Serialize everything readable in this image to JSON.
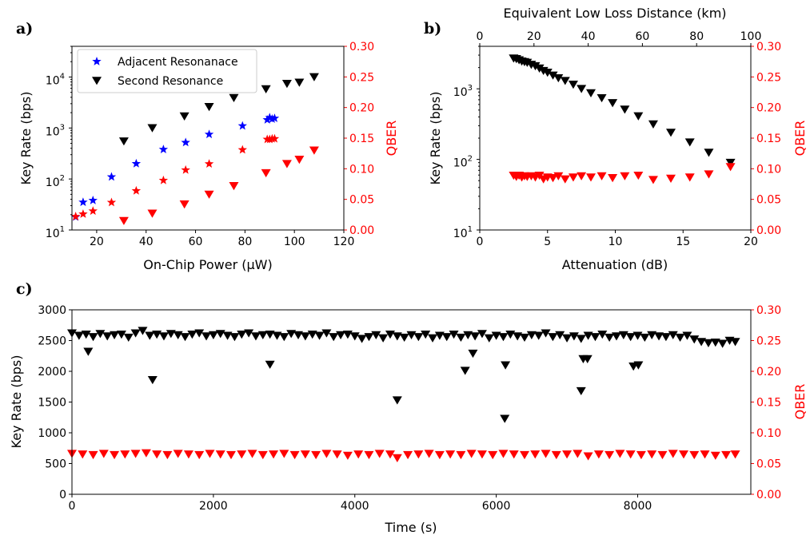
{
  "colors": {
    "key": "#000000",
    "qber": "#ff0000",
    "adj_key": "#0000ff",
    "adj_qber": "#ff0000"
  },
  "chart_data": [
    {
      "type": "scatter",
      "panel_label": "a)",
      "xlabel": "On-Chip Power (µW)",
      "ylabel": "Key Rate (bps)",
      "y2label": "QBER",
      "xlim": [
        10,
        120
      ],
      "ylim": [
        10,
        40000
      ],
      "yscale": "log",
      "y2lim": [
        0,
        0.3
      ],
      "xticks": [
        "20",
        "40",
        "60",
        "80",
        "100",
        "120"
      ],
      "yticks": [
        "10",
        "10",
        "10",
        "10"
      ],
      "ytick_exponents": [
        "1",
        "2",
        "3",
        "4"
      ],
      "y2ticks": [
        "0.00",
        "0.05",
        "0.10",
        "0.15",
        "0.20",
        "0.25",
        "0.30"
      ],
      "legend_position": "top-left",
      "series": [
        {
          "name": "Adjacent Resonanace",
          "axis": "left",
          "marker": "star",
          "color": "#0000ff",
          "x": [
            11.5,
            14.5,
            18.5,
            26,
            36,
            47,
            56,
            65.5,
            79,
            89,
            90,
            91,
            92
          ],
          "y": [
            18,
            35,
            38,
            110,
            200,
            380,
            520,
            750,
            1100,
            1450,
            1600,
            1500,
            1550
          ]
        },
        {
          "name": "Second Resonance",
          "axis": "left",
          "marker": "triangle-down",
          "color": "#000000",
          "x": [
            31,
            42.5,
            55.5,
            65.5,
            75.5,
            88.5,
            97,
            102,
            108
          ],
          "y": [
            550,
            1000,
            1700,
            2600,
            3900,
            5800,
            7400,
            7800,
            10000
          ]
        },
        {
          "axis": "right",
          "marker": "star",
          "color": "#ff0000",
          "x": [
            11.5,
            14.5,
            18.5,
            26,
            36,
            47,
            56,
            65.5,
            79,
            89,
            90,
            91,
            92
          ],
          "y": [
            0.022,
            0.026,
            0.031,
            0.045,
            0.064,
            0.081,
            0.098,
            0.108,
            0.131,
            0.148,
            0.148,
            0.149,
            0.149
          ]
        },
        {
          "axis": "right",
          "marker": "triangle-down",
          "color": "#ff0000",
          "x": [
            31,
            42.5,
            55.5,
            65.5,
            75.5,
            88.5,
            97,
            102,
            108
          ],
          "y": [
            0.015,
            0.027,
            0.042,
            0.058,
            0.072,
            0.093,
            0.108,
            0.115,
            0.13
          ]
        }
      ]
    },
    {
      "type": "scatter",
      "panel_label": "b)",
      "xlabel": "Attenuation (dB)",
      "x2label": "Equivalent Low Loss Distance (km)",
      "ylabel": "Key Rate (bps)",
      "y2label": "QBER",
      "xlim": [
        0,
        20
      ],
      "x2lim": [
        0,
        100
      ],
      "ylim": [
        10,
        4000
      ],
      "yscale": "log",
      "y2lim": [
        0,
        0.3
      ],
      "xticks": [
        "0",
        "5",
        "10",
        "15",
        "20"
      ],
      "x2ticks": [
        "0",
        "20",
        "40",
        "60",
        "80",
        "100"
      ],
      "yticks": [
        "10",
        "10",
        "10"
      ],
      "ytick_exponents": [
        "1",
        "2",
        "3"
      ],
      "y2ticks": [
        "0.00",
        "0.05",
        "0.10",
        "0.15",
        "0.20",
        "0.25",
        "0.30"
      ],
      "series": [
        {
          "axis": "left",
          "marker": "triangle-down",
          "color": "#000000",
          "x": [
            2.5,
            2.7,
            2.9,
            3.1,
            3.3,
            3.5,
            3.8,
            4.1,
            4.4,
            4.7,
            5.0,
            5.4,
            5.8,
            6.3,
            6.9,
            7.5,
            8.2,
            9.0,
            9.8,
            10.7,
            11.7,
            12.8,
            14.1,
            15.5,
            16.9,
            18.5
          ],
          "y": [
            2700,
            2650,
            2550,
            2450,
            2400,
            2350,
            2200,
            2100,
            1950,
            1800,
            1700,
            1550,
            1420,
            1300,
            1150,
            1000,
            870,
            740,
            630,
            510,
            410,
            315,
            240,
            175,
            125,
            90
          ]
        },
        {
          "axis": "right",
          "marker": "triangle-down",
          "color": "#ff0000",
          "x": [
            2.5,
            2.7,
            2.9,
            3.1,
            3.3,
            3.5,
            3.8,
            4.1,
            4.4,
            4.7,
            5.0,
            5.4,
            5.8,
            6.3,
            6.9,
            7.5,
            8.2,
            9.0,
            9.8,
            10.7,
            11.7,
            12.8,
            14.1,
            15.5,
            16.9,
            18.5
          ],
          "y": [
            0.089,
            0.087,
            0.089,
            0.086,
            0.088,
            0.087,
            0.088,
            0.086,
            0.089,
            0.083,
            0.086,
            0.085,
            0.088,
            0.083,
            0.086,
            0.088,
            0.086,
            0.088,
            0.085,
            0.088,
            0.089,
            0.082,
            0.084,
            0.086,
            0.091,
            0.103
          ]
        }
      ]
    },
    {
      "type": "scatter",
      "panel_label": "c)",
      "xlabel": "Time (s)",
      "ylabel": "Key Rate (bps)",
      "y2label": "QBER",
      "xlim": [
        0,
        9600
      ],
      "ylim": [
        0,
        3000
      ],
      "y2lim": [
        0,
        0.3
      ],
      "xticks": [
        "0",
        "2000",
        "4000",
        "6000",
        "8000"
      ],
      "yticks": [
        "0",
        "500",
        "1000",
        "1500",
        "2000",
        "2500",
        "3000"
      ],
      "y2ticks": [
        "0.00",
        "0.05",
        "0.10",
        "0.15",
        "0.20",
        "0.25",
        "0.30"
      ],
      "series": [
        {
          "axis": "left",
          "marker": "triangle-down",
          "color": "#000000",
          "x": [
            0,
            100,
            200,
            300,
            400,
            500,
            600,
            700,
            800,
            900,
            1000,
            1100,
            1200,
            1300,
            1400,
            1500,
            1600,
            1700,
            1800,
            1900,
            2000,
            2100,
            2200,
            2300,
            2400,
            2500,
            2600,
            2700,
            2800,
            2900,
            3000,
            3100,
            3200,
            3300,
            3400,
            3500,
            3600,
            3700,
            3800,
            3900,
            4000,
            4100,
            4200,
            4300,
            4400,
            4500,
            4600,
            4700,
            4800,
            4900,
            5000,
            5100,
            5200,
            5300,
            5400,
            5500,
            5600,
            5700,
            5800,
            5900,
            6000,
            6100,
            6200,
            6300,
            6400,
            6500,
            6600,
            6700,
            6800,
            6900,
            7000,
            7100,
            7200,
            7300,
            7400,
            7500,
            7600,
            7700,
            7800,
            7900,
            8000,
            8100,
            8200,
            8300,
            8400,
            8500,
            8600,
            8700,
            8800,
            8900,
            9000,
            9100,
            9200,
            9300,
            9380
          ],
          "y": [
            2620,
            2580,
            2600,
            2560,
            2610,
            2570,
            2590,
            2600,
            2550,
            2620,
            2660,
            2580,
            2600,
            2570,
            2610,
            2590,
            2560,
            2600,
            2620,
            2570,
            2590,
            2610,
            2580,
            2560,
            2600,
            2620,
            2570,
            2590,
            2600,
            2580,
            2560,
            2610,
            2590,
            2570,
            2600,
            2580,
            2620,
            2560,
            2590,
            2600,
            2570,
            2530,
            2560,
            2590,
            2540,
            2600,
            2570,
            2550,
            2590,
            2560,
            2600,
            2540,
            2580,
            2560,
            2600,
            2550,
            2590,
            2570,
            2610,
            2540,
            2580,
            2560,
            2600,
            2570,
            2550,
            2590,
            2580,
            2620,
            2560,
            2590,
            2540,
            2570,
            2530,
            2580,
            2560,
            2600,
            2550,
            2570,
            2590,
            2560,
            2580,
            2550,
            2590,
            2570,
            2560,
            2590,
            2550,
            2580,
            2520,
            2480,
            2460,
            2470,
            2450,
            2500,
            2480
          ]
        },
        {
          "axis": "left",
          "marker": "triangle-down",
          "color": "#000000",
          "x": [
            230,
            1140,
            2800,
            4600,
            5560,
            5670,
            6120,
            6130,
            7200,
            7230,
            7290,
            7940,
            8010
          ],
          "y": [
            2320,
            1860,
            2110,
            1530,
            2010,
            2290,
            1230,
            2100,
            1680,
            2200,
            2200,
            2080,
            2100
          ]
        },
        {
          "axis": "right",
          "marker": "triangle-down",
          "color": "#ff0000",
          "x": [
            0,
            150,
            300,
            450,
            600,
            750,
            900,
            1050,
            1200,
            1350,
            1500,
            1650,
            1800,
            1950,
            2100,
            2250,
            2400,
            2550,
            2700,
            2850,
            3000,
            3150,
            3300,
            3450,
            3600,
            3750,
            3900,
            4050,
            4200,
            4350,
            4500,
            4600,
            4750,
            4900,
            5050,
            5200,
            5350,
            5500,
            5650,
            5800,
            5950,
            6100,
            6250,
            6400,
            6550,
            6700,
            6850,
            7000,
            7150,
            7300,
            7450,
            7600,
            7750,
            7900,
            8050,
            8200,
            8350,
            8500,
            8650,
            8800,
            8950,
            9100,
            9250,
            9380
          ],
          "y": [
            0.066,
            0.065,
            0.064,
            0.066,
            0.064,
            0.065,
            0.066,
            0.067,
            0.065,
            0.064,
            0.066,
            0.065,
            0.064,
            0.066,
            0.065,
            0.064,
            0.065,
            0.066,
            0.064,
            0.065,
            0.066,
            0.064,
            0.065,
            0.064,
            0.066,
            0.065,
            0.063,
            0.065,
            0.064,
            0.066,
            0.065,
            0.059,
            0.064,
            0.065,
            0.066,
            0.064,
            0.065,
            0.064,
            0.066,
            0.065,
            0.064,
            0.066,
            0.065,
            0.064,
            0.065,
            0.066,
            0.064,
            0.065,
            0.066,
            0.062,
            0.065,
            0.064,
            0.066,
            0.065,
            0.064,
            0.065,
            0.064,
            0.066,
            0.065,
            0.064,
            0.065,
            0.063,
            0.064,
            0.065
          ]
        }
      ]
    }
  ]
}
